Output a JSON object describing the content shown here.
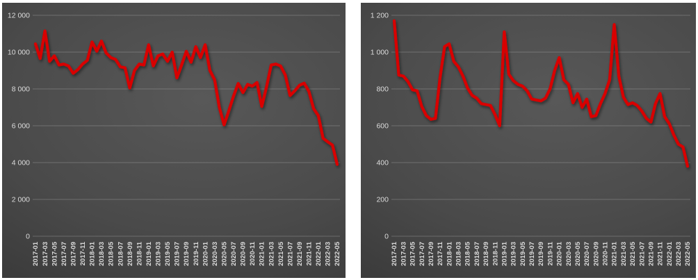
{
  "page": {
    "background_color": "#ffffff"
  },
  "chart_data": [
    {
      "type": "line",
      "title": "",
      "legend": "none",
      "grid": "horizontal",
      "line_color": "#d80000",
      "axis_text_color": "#dcdcdc",
      "gridline_color": "#bfbfbf",
      "panel_background": [
        "#585858",
        "#4a4a4a",
        "#272727"
      ],
      "ylim": [
        0,
        12000
      ],
      "ytick_step": 2000,
      "ytick_labels": [
        "0",
        "2 000",
        "4 000",
        "6 000",
        "8 000",
        "10 000",
        "12 000"
      ],
      "x_tick_every": 2,
      "xlabel": "",
      "ylabel": "",
      "categories": [
        "2017-01",
        "2017-02",
        "2017-03",
        "2017-04",
        "2017-05",
        "2017-06",
        "2017-07",
        "2017-08",
        "2017-09",
        "2017-10",
        "2017-11",
        "2017-12",
        "2018-01",
        "2018-02",
        "2018-03",
        "2018-04",
        "2018-05",
        "2018-06",
        "2018-07",
        "2018-08",
        "2018-09",
        "2018-10",
        "2018-11",
        "2018-12",
        "2019-01",
        "2019-02",
        "2019-03",
        "2019-04",
        "2019-05",
        "2019-06",
        "2019-07",
        "2019-08",
        "2019-09",
        "2019-10",
        "2019-11",
        "2019-12",
        "2020-01",
        "2020-02",
        "2020-03",
        "2020-04",
        "2020-05",
        "2020-06",
        "2020-07",
        "2020-08",
        "2020-09",
        "2020-10",
        "2020-11",
        "2020-12",
        "2021-01",
        "2021-02",
        "2021-03",
        "2021-04",
        "2021-05",
        "2021-06",
        "2021-07",
        "2021-08",
        "2021-09",
        "2021-10",
        "2021-11",
        "2021-12",
        "2022-01",
        "2022-02",
        "2022-03",
        "2022-04",
        "2022-05"
      ],
      "values": [
        10450,
        9650,
        11150,
        9500,
        9800,
        9300,
        9350,
        9250,
        8850,
        9050,
        9350,
        9550,
        10550,
        10050,
        10600,
        9950,
        9700,
        9600,
        9200,
        9150,
        8050,
        9000,
        9350,
        9300,
        10400,
        9250,
        9800,
        9900,
        9500,
        10000,
        8600,
        9300,
        10050,
        9450,
        10300,
        9700,
        10400,
        9000,
        8500,
        7000,
        6050,
        6800,
        7600,
        8300,
        7800,
        8250,
        8150,
        8350,
        7050,
        8100,
        9300,
        9350,
        9250,
        8750,
        7640,
        7900,
        8200,
        8315,
        7865,
        6930,
        6550,
        5320,
        5130,
        4950,
        3900
      ]
    },
    {
      "type": "line",
      "title": "",
      "legend": "none",
      "grid": "horizontal",
      "line_color": "#d80000",
      "axis_text_color": "#dcdcdc",
      "gridline_color": "#bfbfbf",
      "panel_background": [
        "#585858",
        "#4a4a4a",
        "#272727"
      ],
      "ylim": [
        0,
        1200
      ],
      "ytick_step": 200,
      "ytick_labels": [
        "0",
        "200",
        "400",
        "600",
        "800",
        "1 000",
        "1 200"
      ],
      "x_tick_every": 2,
      "xlabel": "",
      "ylabel": "",
      "categories": [
        "2017-01",
        "2017-02",
        "2017-03",
        "2017-04",
        "2017-05",
        "2017-06",
        "2017-07",
        "2017-08",
        "2017-09",
        "2017-10",
        "2017-11",
        "2017-12",
        "2018-01",
        "2018-02",
        "2018-03",
        "2018-04",
        "2018-05",
        "2018-06",
        "2018-07",
        "2018-08",
        "2018-09",
        "2018-10",
        "2018-11",
        "2018-12",
        "2019-01",
        "2019-02",
        "2019-03",
        "2019-04",
        "2019-05",
        "2019-06",
        "2019-07",
        "2019-08",
        "2019-09",
        "2019-10",
        "2019-11",
        "2019-12",
        "2020-01",
        "2020-02",
        "2020-03",
        "2020-04",
        "2020-05",
        "2020-06",
        "2020-07",
        "2020-08",
        "2020-09",
        "2020-10",
        "2020-11",
        "2020-12",
        "2021-01",
        "2021-02",
        "2021-03",
        "2021-04",
        "2021-05",
        "2021-06",
        "2021-07",
        "2021-08",
        "2021-09",
        "2021-10",
        "2021-11",
        "2021-12",
        "2022-01",
        "2022-02",
        "2022-03",
        "2022-04",
        "2022-05"
      ],
      "values": [
        1170,
        875,
        870,
        840,
        795,
        790,
        705,
        655,
        635,
        640,
        860,
        1030,
        1045,
        950,
        920,
        870,
        805,
        765,
        750,
        720,
        715,
        710,
        660,
        600,
        1110,
        880,
        845,
        825,
        815,
        790,
        745,
        740,
        735,
        750,
        800,
        900,
        970,
        850,
        825,
        725,
        775,
        700,
        745,
        650,
        655,
        720,
        775,
        850,
        1150,
        870,
        755,
        715,
        725,
        710,
        680,
        640,
        620,
        720,
        775,
        650,
        612,
        550,
        500,
        485,
        380
      ]
    }
  ]
}
